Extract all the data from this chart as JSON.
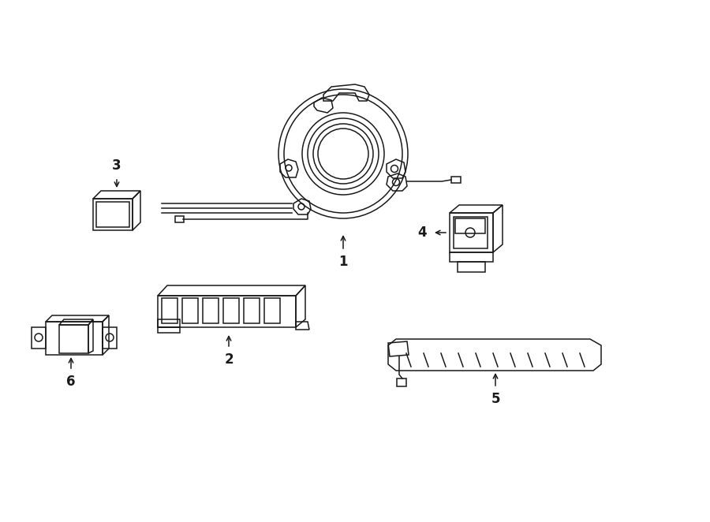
{
  "bg_color": "#ffffff",
  "line_color": "#1a1a1a",
  "lw": 1.1,
  "figsize": [
    9.0,
    6.62
  ],
  "dpi": 100
}
